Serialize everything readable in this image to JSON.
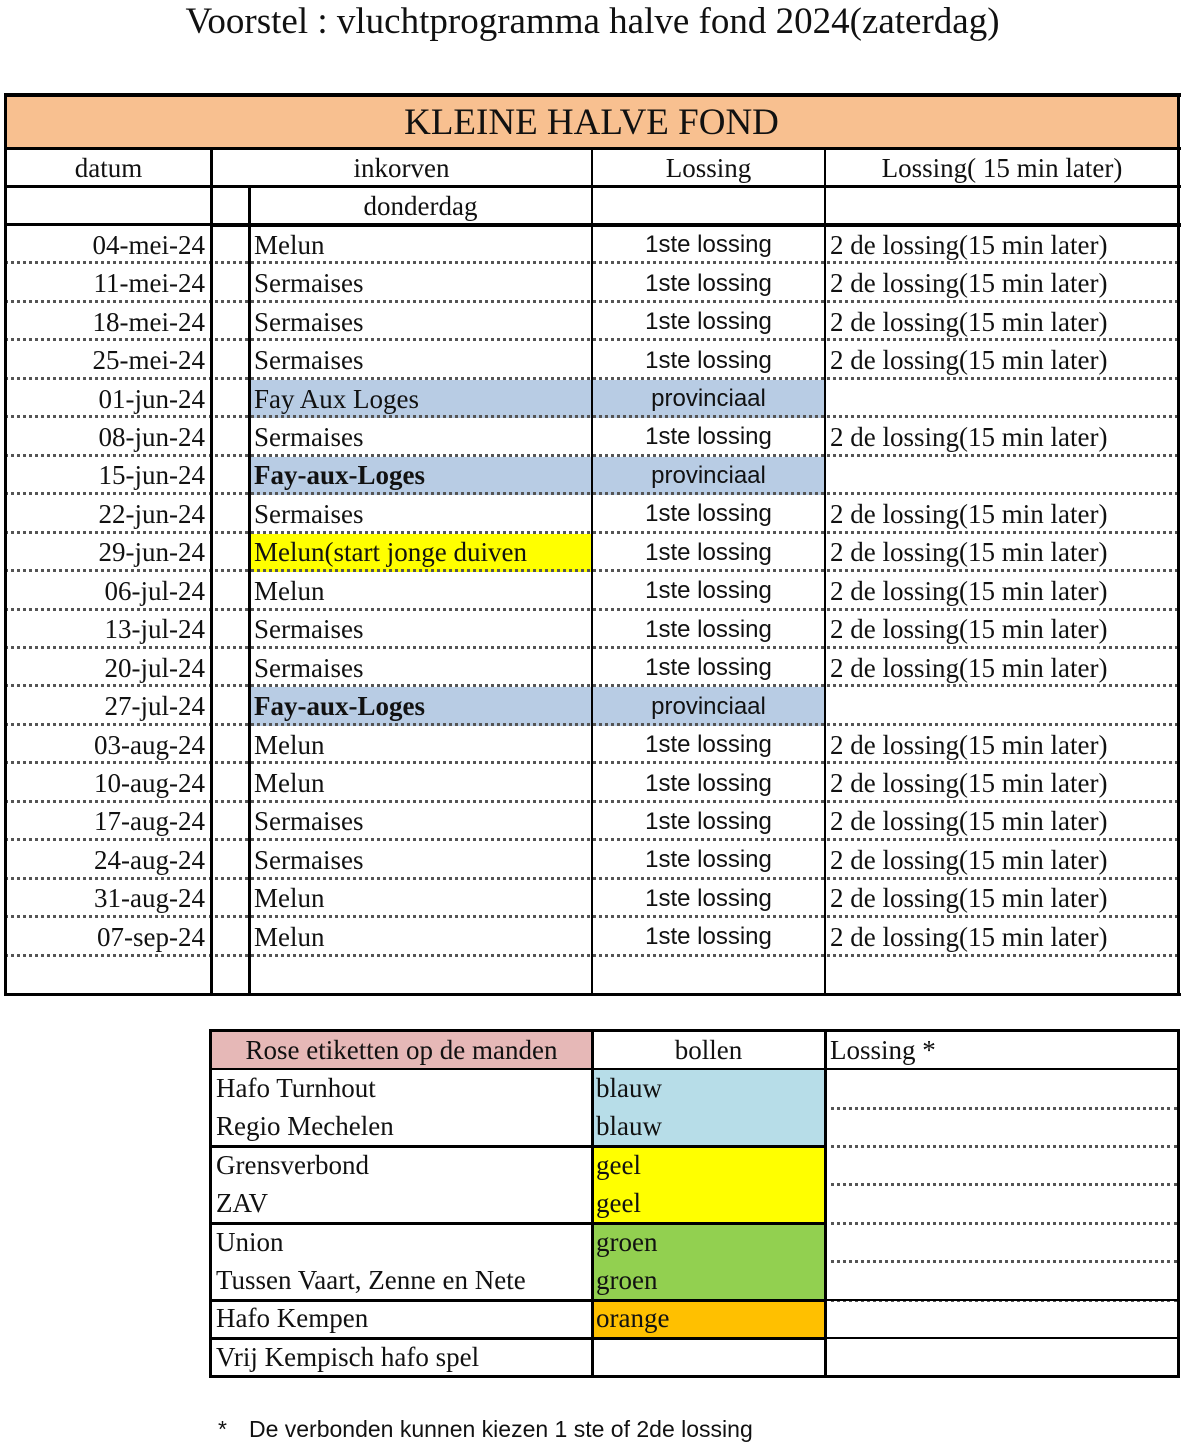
{
  "title": "Voorstel : vluchtprogramma halve fond  2024(zaterdag)",
  "table1": {
    "banner": "KLEINE HALVE FOND",
    "banner_color": "#F8C090",
    "headers": {
      "datum": "datum",
      "inkorven": "inkorven",
      "lossing": "Lossing",
      "lossing2": "Lossing( 15 min later)",
      "subheader": "donderdag"
    },
    "highlight_colors": {
      "provinciaal": "#B8CCE4",
      "yellow": "#FFFF00"
    },
    "rows": [
      {
        "datum": "04-mei-24",
        "plaats": "Melun",
        "lossing": "1ste lossing",
        "lossing2": "2 de lossing(15 min later)"
      },
      {
        "datum": "11-mei-24",
        "plaats": "Sermaises",
        "lossing": "1ste lossing",
        "lossing2": "2 de lossing(15 min later)"
      },
      {
        "datum": "18-mei-24",
        "plaats": "Sermaises",
        "lossing": "1ste lossing",
        "lossing2": "2 de lossing(15 min later)"
      },
      {
        "datum": "25-mei-24",
        "plaats": "Sermaises",
        "lossing": "1ste lossing",
        "lossing2": "2 de lossing(15 min later)"
      },
      {
        "datum": "01-jun-24",
        "plaats": "Fay Aux Loges",
        "lossing": "provinciaal",
        "lossing2": "",
        "highlight": "provinciaal"
      },
      {
        "datum": "08-jun-24",
        "plaats": "Sermaises",
        "lossing": "1ste lossing",
        "lossing2": "2 de lossing(15 min later)"
      },
      {
        "datum": "15-jun-24",
        "plaats": "Fay-aux-Loges",
        "lossing": "provinciaal",
        "lossing2": "",
        "highlight": "provinciaal",
        "bold": true
      },
      {
        "datum": "22-jun-24",
        "plaats": "Sermaises",
        "lossing": "1ste lossing",
        "lossing2": "2 de lossing(15 min later)"
      },
      {
        "datum": "29-jun-24",
        "plaats": "Melun(start jonge duiven",
        "lossing": "1ste lossing",
        "lossing2": "2 de lossing(15 min later)",
        "highlight": "yellow"
      },
      {
        "datum": "06-jul-24",
        "plaats": "Melun",
        "lossing": "1ste lossing",
        "lossing2": "2 de lossing(15 min later)"
      },
      {
        "datum": "13-jul-24",
        "plaats": "Sermaises",
        "lossing": "1ste lossing",
        "lossing2": "2 de lossing(15 min later)"
      },
      {
        "datum": "20-jul-24",
        "plaats": "Sermaises",
        "lossing": "1ste lossing",
        "lossing2": "2 de lossing(15 min later)"
      },
      {
        "datum": "27-jul-24",
        "plaats": "Fay-aux-Loges",
        "lossing": "provinciaal",
        "lossing2": "",
        "highlight": "provinciaal",
        "bold": true
      },
      {
        "datum": "03-aug-24",
        "plaats": "Melun",
        "lossing": "1ste lossing",
        "lossing2": "2 de lossing(15 min later)"
      },
      {
        "datum": "10-aug-24",
        "plaats": "Melun",
        "lossing": "1ste lossing",
        "lossing2": "2 de lossing(15 min later)"
      },
      {
        "datum": "17-aug-24",
        "plaats": "Sermaises",
        "lossing": "1ste lossing",
        "lossing2": "2 de lossing(15 min later)"
      },
      {
        "datum": "24-aug-24",
        "plaats": "Sermaises",
        "lossing": "1ste lossing",
        "lossing2": "2 de lossing(15 min later)"
      },
      {
        "datum": "31-aug-24",
        "plaats": "Melun",
        "lossing": "1ste lossing",
        "lossing2": "2 de lossing(15 min later)"
      },
      {
        "datum": "07-sep-24",
        "plaats": "Melun",
        "lossing": "1ste lossing",
        "lossing2": "2 de lossing(15 min later)"
      }
    ]
  },
  "table2": {
    "headers": {
      "etiketten": "Rose etiketten op de manden",
      "bollen": "bollen",
      "lossing": "Lossing *"
    },
    "header_color": "#E6B8B7",
    "rows": [
      {
        "verbond": "Hafo Turnhout",
        "bollen": "blauw",
        "color": "#B7DDE8"
      },
      {
        "verbond": "Regio Mechelen",
        "bollen": "blauw",
        "color": "#B7DDE8"
      },
      {
        "verbond": "Grensverbond",
        "bollen": "geel",
        "color": "#FFFF00"
      },
      {
        "verbond": "ZAV",
        "bollen": "geel",
        "color": "#FFFF00"
      },
      {
        "verbond": "Union",
        "bollen": "groen",
        "color": "#92D050"
      },
      {
        "verbond": "Tussen Vaart, Zenne en Nete",
        "bollen": "groen",
        "color": "#92D050"
      },
      {
        "verbond": "Hafo Kempen",
        "bollen": "orange",
        "color": "#FFC000"
      },
      {
        "verbond": "Vrij Kempisch hafo spel",
        "bollen": "",
        "color": ""
      }
    ]
  },
  "footnote": {
    "marker": "*",
    "text": "De verbonden kunnen kiezen 1 ste of 2de lossing"
  }
}
